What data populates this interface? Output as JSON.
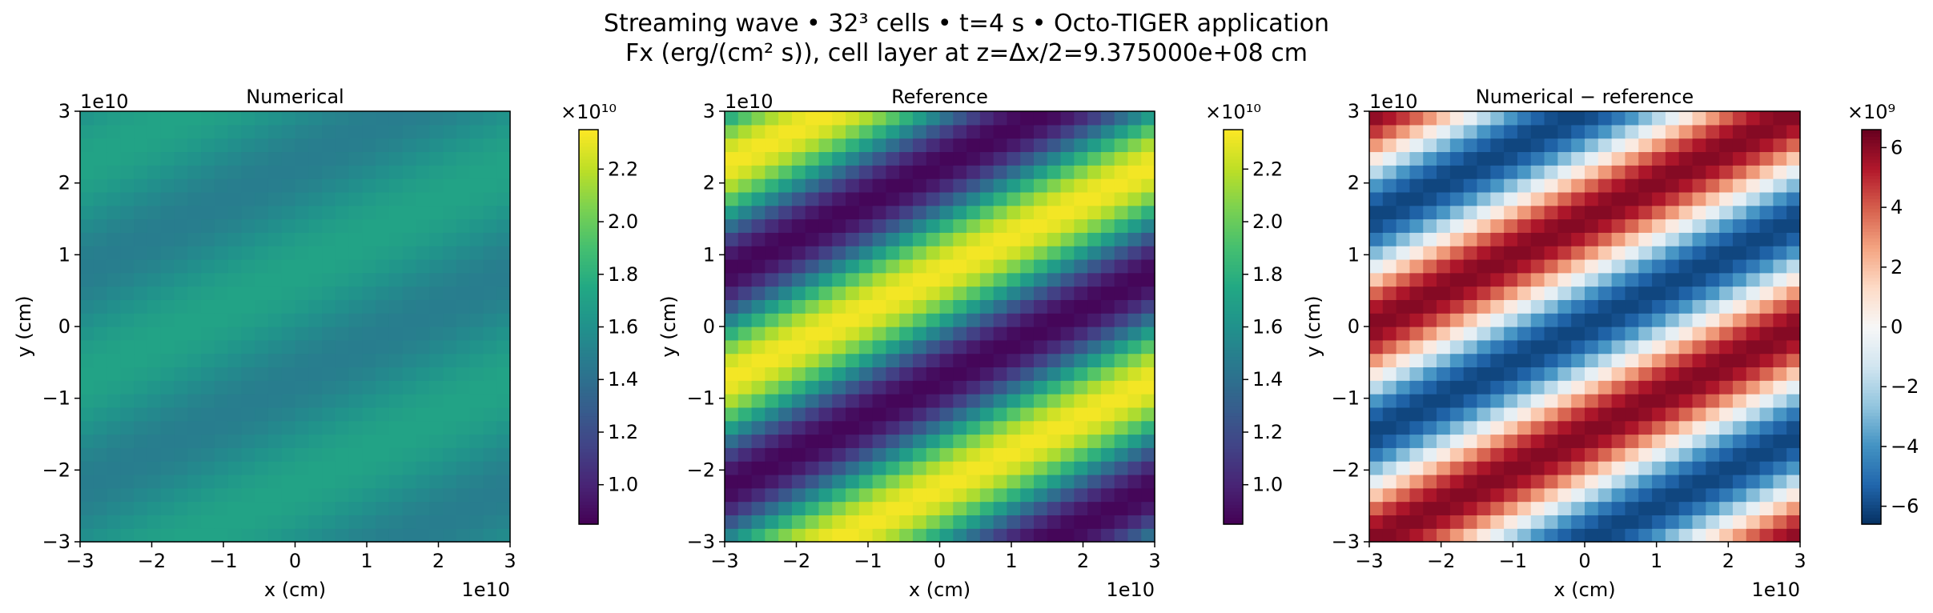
{
  "figure": {
    "title_line1": "Streaming wave • 32³ cells • t=4 s • Octo-TIGER application",
    "title_line2": "Fx (erg/(cm² s)), cell layer at z=Δx/2=9.375000e+08 cm"
  },
  "chart_data": [
    {
      "type": "heatmap",
      "title": "Numerical",
      "xlabel": "x (cm)",
      "ylabel": "y (cm)",
      "x_offset_label": "1e10",
      "y_offset_label": "1e10",
      "xlim": [
        -30000000000.0,
        30000000000.0
      ],
      "ylim": [
        -30000000000.0,
        30000000000.0
      ],
      "xticks": [
        -3,
        -2,
        -1,
        0,
        1,
        2,
        3
      ],
      "yticks": [
        -3,
        -2,
        -1,
        0,
        1,
        2,
        3
      ],
      "tick_labels": [
        "−3",
        "−2",
        "−1",
        "0",
        "1",
        "2",
        "3"
      ],
      "grid_cells": [
        32,
        32
      ],
      "field": {
        "mean": 16000000000.0,
        "amplitude": 1200000000.0,
        "wave_x": 1,
        "wave_y": 2
      },
      "colormap": "viridis",
      "colorbar": {
        "vmin": 8500000000.0,
        "vmax": 23500000000.0,
        "scale_label": "×10¹⁰",
        "ticks": [
          1.0,
          1.2,
          1.4,
          1.6,
          1.8,
          2.0,
          2.2
        ],
        "tick_labels": [
          "1.0",
          "1.2",
          "1.4",
          "1.6",
          "1.8",
          "2.0",
          "2.2"
        ],
        "scale": 10000000000.0
      }
    },
    {
      "type": "heatmap",
      "title": "Reference",
      "xlabel": "x (cm)",
      "ylabel": "y (cm)",
      "x_offset_label": "1e10",
      "y_offset_label": "1e10",
      "xlim": [
        -30000000000.0,
        30000000000.0
      ],
      "ylim": [
        -30000000000.0,
        30000000000.0
      ],
      "xticks": [
        -3,
        -2,
        -1,
        0,
        1,
        2,
        3
      ],
      "yticks": [
        -3,
        -2,
        -1,
        0,
        1,
        2,
        3
      ],
      "tick_labels": [
        "−3",
        "−2",
        "−1",
        "0",
        "1",
        "2",
        "3"
      ],
      "grid_cells": [
        32,
        32
      ],
      "field": {
        "mean": 16000000000.0,
        "amplitude": 7300000000.0,
        "wave_x": 1,
        "wave_y": 2
      },
      "colormap": "viridis",
      "colorbar": {
        "vmin": 8500000000.0,
        "vmax": 23500000000.0,
        "scale_label": "×10¹⁰",
        "ticks": [
          1.0,
          1.2,
          1.4,
          1.6,
          1.8,
          2.0,
          2.2
        ],
        "tick_labels": [
          "1.0",
          "1.2",
          "1.4",
          "1.6",
          "1.8",
          "2.0",
          "2.2"
        ],
        "scale": 10000000000.0
      }
    },
    {
      "type": "heatmap",
      "title": "Numerical − reference",
      "xlabel": "x (cm)",
      "ylabel": "y (cm)",
      "x_offset_label": "1e10",
      "y_offset_label": "1e10",
      "xlim": [
        -30000000000.0,
        30000000000.0
      ],
      "ylim": [
        -30000000000.0,
        30000000000.0
      ],
      "xticks": [
        -3,
        -2,
        -1,
        0,
        1,
        2,
        3
      ],
      "yticks": [
        -3,
        -2,
        -1,
        0,
        1,
        2,
        3
      ],
      "tick_labels": [
        "−3",
        "−2",
        "−1",
        "0",
        "1",
        "2",
        "3"
      ],
      "grid_cells": [
        32,
        32
      ],
      "field": {
        "mean": 0,
        "amplitude": 6100000000.0,
        "wave_x": 1,
        "wave_y": 2,
        "phase_shift_rad": 1.5708
      },
      "colormap": "RdBu_r",
      "colorbar": {
        "vmin": -6600000000.0,
        "vmax": 6600000000.0,
        "scale_label": "×10⁹",
        "ticks": [
          -6,
          -4,
          -2,
          0,
          2,
          4,
          6
        ],
        "tick_labels": [
          "−6",
          "−4",
          "−2",
          "0",
          "2",
          "4",
          "6"
        ],
        "scale": 1000000000.0
      }
    }
  ]
}
